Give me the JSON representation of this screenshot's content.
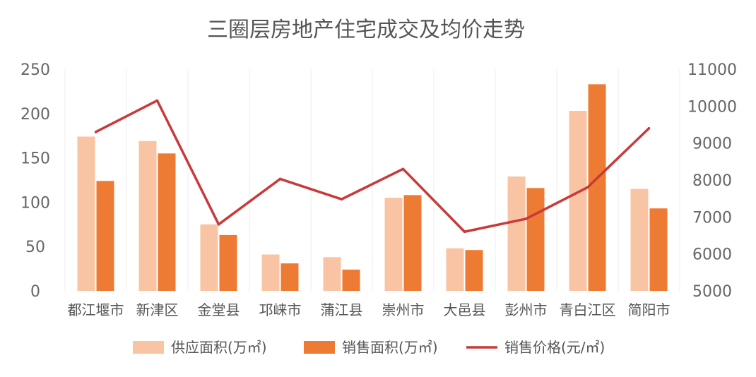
{
  "chart_data": {
    "type": "bar",
    "title": "三圈层房地产住宅成交及均价走势",
    "categories": [
      "都江堰市",
      "新津区",
      "金堂县",
      "邛崃市",
      "蒲江县",
      "崇州市",
      "大邑县",
      "彭州市",
      "青白江区",
      "简阳市"
    ],
    "series": [
      {
        "name": "供应面积(万㎡)",
        "kind": "bar",
        "axis": "left",
        "color": "#F8C4A4",
        "values": [
          174,
          169,
          75,
          41,
          38,
          105,
          48,
          129,
          203,
          115
        ]
      },
      {
        "name": "销售面积(万㎡)",
        "kind": "bar",
        "axis": "left",
        "color": "#EE7B33",
        "values": [
          124,
          155,
          63,
          31,
          24,
          108,
          46,
          116,
          233,
          93
        ]
      },
      {
        "name": "销售价格(元/㎡)",
        "kind": "line",
        "axis": "right",
        "color": "#C83A3A",
        "values": [
          9300,
          10150,
          6800,
          8030,
          7480,
          8300,
          6600,
          6950,
          7800,
          9400
        ]
      }
    ],
    "y_left": {
      "lim": [
        0,
        250
      ],
      "ticks": [
        0,
        50,
        100,
        150,
        200,
        250
      ]
    },
    "y_right": {
      "lim": [
        5000,
        11000
      ],
      "ticks": [
        5000,
        6000,
        7000,
        8000,
        9000,
        10000,
        11000
      ]
    },
    "legend_position": "bottom",
    "grid": "vertical"
  }
}
